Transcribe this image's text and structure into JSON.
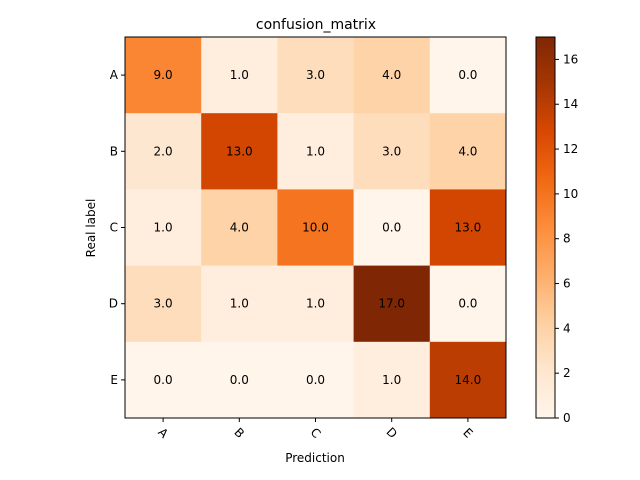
{
  "chart_data": {
    "type": "heatmap",
    "title": "confusion_matrix",
    "xlabel": "Prediction",
    "ylabel": "Real label",
    "x_categories": [
      "A",
      "B",
      "C",
      "D",
      "E"
    ],
    "y_categories": [
      "A",
      "B",
      "C",
      "D",
      "E"
    ],
    "values": [
      [
        9,
        1,
        3,
        4,
        0
      ],
      [
        2,
        13,
        1,
        3,
        4
      ],
      [
        1,
        4,
        10,
        0,
        13
      ],
      [
        3,
        1,
        1,
        17,
        0
      ],
      [
        0,
        0,
        0,
        1,
        14
      ]
    ],
    "cell_labels": [
      [
        "9.0",
        "1.0",
        "3.0",
        "4.0",
        "0.0"
      ],
      [
        "2.0",
        "13.0",
        "1.0",
        "3.0",
        "4.0"
      ],
      [
        "1.0",
        "4.0",
        "10.0",
        "0.0",
        "13.0"
      ],
      [
        "3.0",
        "1.0",
        "1.0",
        "17.0",
        "0.0"
      ],
      [
        "0.0",
        "0.0",
        "0.0",
        "1.0",
        "14.0"
      ]
    ],
    "colormap": "Oranges",
    "vmin": 0,
    "vmax": 17,
    "colorbar_ticks": [
      0,
      2,
      4,
      6,
      8,
      10,
      12,
      14,
      16
    ],
    "colorbar_tick_labels": [
      "0",
      "2",
      "4",
      "6",
      "8",
      "10",
      "12",
      "14",
      "16"
    ]
  }
}
